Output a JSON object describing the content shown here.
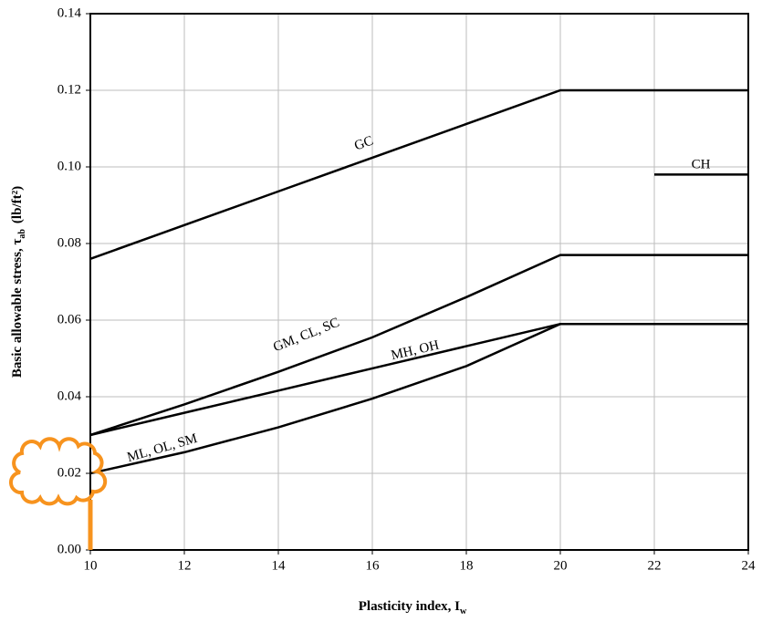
{
  "chart_data": {
    "type": "line",
    "xlabel": {
      "text": "Plasticity index, I",
      "sub": "w"
    },
    "ylabel": {
      "text": "Basic allowable stress, τ",
      "sub": "ab",
      "after": "(lb/ft²)"
    },
    "x": [
      10,
      12,
      14,
      16,
      18,
      20,
      22,
      24
    ],
    "series": [
      {
        "name": "GC",
        "color": "#000000",
        "values": [
          0.076,
          0.0848,
          0.0936,
          0.1024,
          0.1112,
          0.12,
          0.12,
          0.12
        ]
      },
      {
        "name": "CH",
        "color": "#000000",
        "values": [
          null,
          null,
          null,
          null,
          null,
          null,
          0.098,
          0.098
        ]
      },
      {
        "name": "GM, CL, SC",
        "color": "#000000",
        "values": [
          0.03,
          0.038,
          0.0465,
          0.0555,
          0.066,
          0.077,
          0.077,
          0.077
        ]
      },
      {
        "name": "MH, OH",
        "color": "#000000",
        "values": [
          0.03,
          0.0358,
          0.0416,
          0.0474,
          0.0532,
          0.059,
          0.059,
          0.059
        ]
      },
      {
        "name": "ML, OL, SM",
        "color": "#000000",
        "values": [
          0.02,
          0.0255,
          0.032,
          0.0395,
          0.048,
          0.059,
          0.059,
          0.059
        ]
      }
    ],
    "xlim": [
      10,
      24
    ],
    "ylim": [
      0,
      0.14
    ],
    "xticks": [
      10,
      12,
      14,
      16,
      18,
      20,
      22,
      24
    ],
    "yticks": [
      {
        "value": 0,
        "label": "0.00"
      },
      0.02,
      0.04,
      0.06,
      0.08,
      {
        "value": 0.1,
        "label": "0.10"
      },
      0.12,
      0.14
    ],
    "grid": true
  }
}
